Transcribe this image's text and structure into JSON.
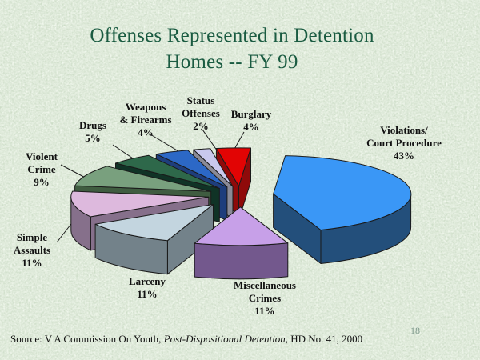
{
  "title": {
    "line1": "Offenses Represented in Detention",
    "line2": "Homes -- FY 99",
    "color": "#1A5B41"
  },
  "source": {
    "prefix": "Source: V A Commission On Youth, ",
    "italic": "Post-Dispositional Detention",
    "suffix": ", HD No. 41, 2000"
  },
  "page_number": "18",
  "background_color": "#CDDFC8",
  "chart_data": {
    "type": "pie",
    "style": "3d-exploded",
    "title": "Offenses Represented in Detention Homes -- FY 99",
    "units": "percent",
    "legend_position": "callout-labels",
    "total": 100,
    "slices": [
      {
        "id": "violations-court-procedure",
        "label": "Violations/Court Procedure",
        "pct": 43,
        "display_label": "Violations/\nCourt Procedure\n43%",
        "top_color": "#3A97F6",
        "side_color": "#234F7B",
        "explode": 42
      },
      {
        "id": "miscellaneous-crimes",
        "label": "Miscellaneous Crimes",
        "pct": 11,
        "display_label": "Miscellaneous\nCrimes\n11%",
        "top_color": "#C7A0E8",
        "side_color": "#73588D",
        "explode": 53
      },
      {
        "id": "larceny",
        "label": "Larceny",
        "pct": 11,
        "display_label": "Larceny\n11%",
        "top_color": "#C3D5DF",
        "side_color": "#73828A",
        "explode": 53
      },
      {
        "id": "simple-assaults",
        "label": "Simple Assaults",
        "pct": 11,
        "display_label": "Simple\nAssaults\n11%",
        "top_color": "#DDB9DD",
        "side_color": "#86708B",
        "explode": 40
      },
      {
        "id": "violent-crime",
        "label": "Violent Crime",
        "pct": 9,
        "display_label": "Violent\nCrime\n9%",
        "top_color": "#79A07E",
        "side_color": "#3F5C40",
        "explode": 40
      },
      {
        "id": "drugs",
        "label": "Drugs",
        "pct": 5,
        "display_label": "Drugs\n5%",
        "top_color": "#2E684A",
        "side_color": "#103326",
        "explode": 40
      },
      {
        "id": "weapons-firearms",
        "label": "Weapons & Firearms",
        "pct": 4,
        "display_label": "Weapons\n& Firearms\n4%",
        "top_color": "#2C68C6",
        "side_color": "#1E3E7C",
        "explode": 40
      },
      {
        "id": "status-offenses",
        "label": "Status Offenses",
        "pct": 2,
        "display_label": "Status\nOffenses\n2%",
        "top_color": "#C9C9EE",
        "side_color": "#8A8A96",
        "explode": 40
      },
      {
        "id": "burglary",
        "label": "Burglary",
        "pct": 4,
        "display_label": "Burglary\n4%",
        "top_color": "#E20404",
        "side_color": "#8F0A0A",
        "explode": 40
      }
    ]
  }
}
